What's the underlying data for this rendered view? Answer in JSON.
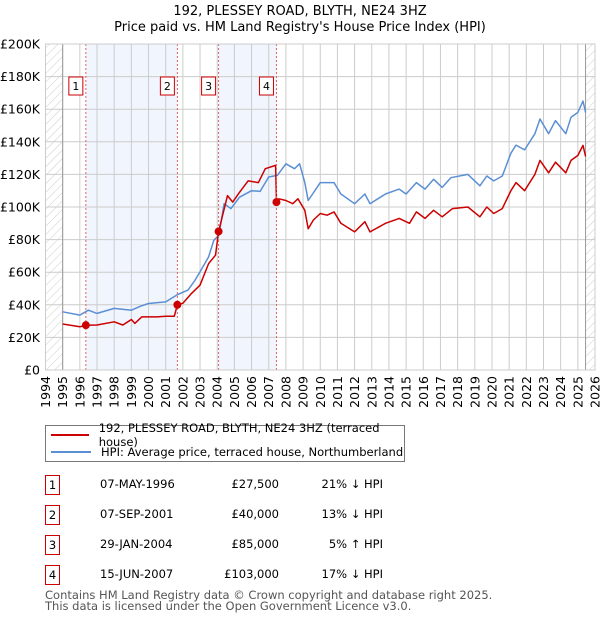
{
  "chart_data": {
    "type": "line",
    "title": "192, PLESSEY ROAD, BLYTH, NE24 3HZ",
    "subtitle": "Price paid vs. HM Land Registry's House Price Index (HPI)",
    "xlim": [
      1994,
      2026
    ],
    "ylim": [
      0,
      200000
    ],
    "y_ticks": [
      0,
      20000,
      40000,
      60000,
      80000,
      100000,
      120000,
      140000,
      160000,
      180000,
      200000
    ],
    "y_tick_labels": [
      "£0",
      "£20K",
      "£40K",
      "£60K",
      "£80K",
      "£100K",
      "£120K",
      "£140K",
      "£160K",
      "£180K",
      "£200K"
    ],
    "x_ticks": [
      1994,
      1995,
      1996,
      1997,
      1998,
      1999,
      2000,
      2001,
      2002,
      2003,
      2004,
      2005,
      2006,
      2007,
      2008,
      2009,
      2010,
      2011,
      2012,
      2013,
      2014,
      2015,
      2016,
      2017,
      2018,
      2019,
      2020,
      2021,
      2022,
      2023,
      2024,
      2025,
      2026
    ],
    "grid": true,
    "data_range": [
      1995,
      2025.45
    ],
    "shaded_ranges": [
      [
        1996.35,
        2001.68
      ],
      [
        2004.08,
        2007.45
      ]
    ],
    "series": [
      {
        "name": "192, PLESSEY ROAD, BLYTH, NE24 3HZ (terraced house)",
        "color": "#cc0000",
        "x": [
          1995,
          1996,
          1996.35,
          1997,
          1998,
          1998.5,
          1999,
          1999.2,
          1999.6,
          2000.5,
          2001,
          2001.5,
          2001.68,
          2002,
          2002.5,
          2003,
          2003.5,
          2003.9,
          2004.08,
          2004.6,
          2004.9,
          2005.3,
          2005.8,
          2006.4,
          2006.8,
          2007.4,
          2007.45,
          2007.6,
          2008,
          2008.4,
          2008.7,
          2009.1,
          2009.3,
          2009.6,
          2010,
          2010.4,
          2010.8,
          2011.2,
          2012,
          2012.6,
          2012.9,
          2013.8,
          2014.6,
          2015.2,
          2015.6,
          2016.1,
          2016.6,
          2017.1,
          2017.7,
          2018.6,
          2019.3,
          2019.7,
          2020.1,
          2020.6,
          2021.1,
          2021.4,
          2021.9,
          2022.5,
          2022.8,
          2023.3,
          2023.7,
          2024.3,
          2024.6,
          2025,
          2025.3,
          2025.45
        ],
        "values": [
          28200,
          26500,
          27500,
          27600,
          29600,
          27600,
          31000,
          28600,
          32600,
          32600,
          33000,
          33000,
          40000,
          41000,
          47000,
          52000,
          65300,
          70400,
          85000,
          107000,
          103000,
          109000,
          116000,
          115000,
          123500,
          125500,
          103000,
          105000,
          104000,
          102000,
          105000,
          98000,
          86700,
          92000,
          96000,
          95000,
          97000,
          90000,
          84700,
          91000,
          84700,
          90000,
          93000,
          90000,
          97000,
          93000,
          98000,
          94000,
          99000,
          100000,
          94000,
          100000,
          96000,
          99000,
          110000,
          115000,
          110000,
          120000,
          128600,
          121000,
          127500,
          121000,
          128600,
          131600,
          137800,
          131000
        ]
      },
      {
        "name": "HPI: Average price, terraced house, Northumberland",
        "color": "#5b8fd4",
        "x": [
          1995,
          1996,
          1996.5,
          1997,
          1998,
          1999,
          1999.5,
          2000,
          2001,
          2001.7,
          2002.3,
          2002.7,
          2003,
          2003.5,
          2003.8,
          2004.1,
          2004.4,
          2004.8,
          2005.3,
          2006,
          2006.5,
          2007,
          2007.5,
          2008,
          2008.5,
          2008.8,
          2009.1,
          2009.3,
          2010,
          2010.8,
          2011.2,
          2012,
          2012.6,
          2012.9,
          2013.8,
          2014.6,
          2015,
          2015.6,
          2016.1,
          2016.6,
          2017.1,
          2017.6,
          2018.6,
          2019.3,
          2019.7,
          2020.1,
          2020.6,
          2021.1,
          2021.4,
          2021.9,
          2022.5,
          2022.8,
          2023.3,
          2023.7,
          2024.3,
          2024.6,
          2025,
          2025.3,
          2025.45
        ],
        "values": [
          35700,
          33700,
          36700,
          34700,
          37800,
          36700,
          39000,
          40800,
          41800,
          46300,
          49000,
          55000,
          60200,
          69400,
          79600,
          82700,
          102000,
          99000,
          106000,
          110000,
          109600,
          118400,
          119400,
          126500,
          123500,
          126500,
          115000,
          104000,
          115000,
          115000,
          108000,
          102000,
          108000,
          102000,
          108000,
          111000,
          108000,
          115000,
          111000,
          117000,
          112000,
          118000,
          120000,
          113000,
          119000,
          116000,
          119000,
          133000,
          138000,
          135000,
          145000,
          154000,
          145000,
          153000,
          145000,
          155000,
          158000,
          165000,
          158000
        ]
      }
    ],
    "sales": [
      {
        "label": "1",
        "x": 1996.35,
        "value": 27500
      },
      {
        "label": "2",
        "x": 2001.68,
        "value": 40000
      },
      {
        "label": "3",
        "x": 2004.08,
        "value": 85000
      },
      {
        "label": "4",
        "x": 2007.45,
        "value": 103000
      }
    ]
  },
  "header": {
    "title": "192, PLESSEY ROAD, BLYTH, NE24 3HZ",
    "subtitle": "Price paid vs. HM Land Registry's House Price Index (HPI)"
  },
  "legend": {
    "items": [
      {
        "label": "192, PLESSEY ROAD, BLYTH, NE24 3HZ (terraced house)",
        "color": "#cc0000"
      },
      {
        "label": "HPI: Average price, terraced house, Northumberland",
        "color": "#5b8fd4"
      }
    ]
  },
  "table": {
    "rows": [
      {
        "num": "1",
        "date": "07-MAY-1996",
        "price": "£27,500",
        "pct": "21% ↓ HPI"
      },
      {
        "num": "2",
        "date": "07-SEP-2001",
        "price": "£40,000",
        "pct": "13% ↓ HPI"
      },
      {
        "num": "3",
        "date": "29-JAN-2004",
        "price": "£85,000",
        "pct": "5% ↑ HPI"
      },
      {
        "num": "4",
        "date": "15-JUN-2007",
        "price": "£103,000",
        "pct": "17% ↓ HPI"
      }
    ]
  },
  "footer": {
    "line1": "Contains HM Land Registry data © Crown copyright and database right 2025.",
    "line2": "This data is licensed under the Open Government Licence v3.0."
  }
}
